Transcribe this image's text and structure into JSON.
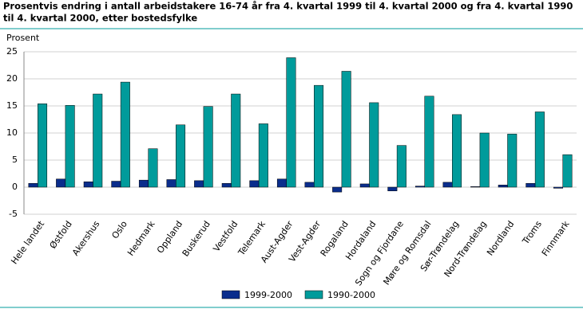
{
  "chart_data": {
    "type": "bar",
    "title": [
      "Prosentvis endring i antall arbeidstakere 16-74 år fra 4. kvartal 1999 til 4. kvartal 2000 og fra 4. kvartal 1990",
      "til 4. kvartal 2000, etter bostedsfylke"
    ],
    "y_label": "Prosent",
    "categories": [
      "Hele landet",
      "Østfold",
      "Akershus",
      "Oslo",
      "Hedmark",
      "Oppland",
      "Buskerud",
      "Vestfold",
      "Telemark",
      "Aust-Agder",
      "Vest-Agder",
      "Rogaland",
      "Hordaland",
      "Sogn og Fjordane",
      "Møre og Romsdal",
      "Sør-Trøndelag",
      "Nord-Trøndelag",
      "Nordland",
      "Troms",
      "Finnmark"
    ],
    "series": [
      {
        "name": "1999-2000",
        "color": "#0a2d8c",
        "values": [
          0.7,
          1.5,
          1.0,
          1.1,
          1.3,
          1.4,
          1.2,
          0.7,
          1.2,
          1.5,
          0.9,
          -0.9,
          0.6,
          -0.7,
          0.2,
          0.9,
          0.1,
          0.4,
          0.7,
          -0.2
        ]
      },
      {
        "name": "1990-2000",
        "color": "#009b9b",
        "values": [
          15.4,
          15.1,
          17.2,
          19.4,
          7.1,
          11.5,
          14.9,
          17.2,
          11.7,
          23.9,
          18.8,
          21.4,
          15.6,
          7.7,
          16.8,
          13.4,
          10.0,
          9.8,
          13.9,
          6.0
        ]
      }
    ],
    "ylim": [
      -5,
      25
    ],
    "yticks": [
      -5,
      0,
      5,
      10,
      15,
      20,
      25
    ],
    "grid": true
  }
}
